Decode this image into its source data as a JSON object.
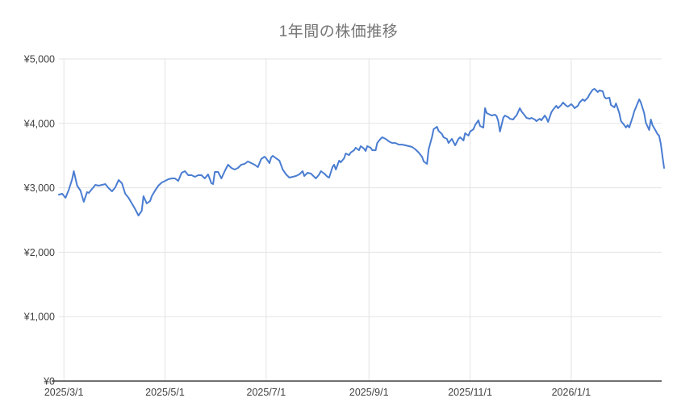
{
  "chart_data": {
    "type": "line",
    "title": "1年間の株価推移",
    "xlabel": "",
    "ylabel": "",
    "ylim": [
      0,
      5000
    ],
    "x_range_days": [
      0,
      365
    ],
    "grid": true,
    "legend": "none",
    "line_color": "#4a7dd1",
    "gridline_color": "#e3e3e3",
    "baseline_color": "#424242",
    "tick_label_color": "#404040",
    "title_color": "#757575",
    "y_axis": {
      "tick_values": [
        0,
        1000,
        2000,
        3000,
        4000,
        5000
      ],
      "tick_labels": [
        "¥0",
        "¥1,000",
        "¥2,000",
        "¥3,000",
        "¥4,000",
        "¥5,000"
      ]
    },
    "x_axis": {
      "tick_days": [
        3,
        64,
        125,
        187,
        248,
        309
      ],
      "tick_labels": [
        "2025/3/1",
        "2025/5/1",
        "2025/7/1",
        "2025/9/1",
        "2025/11/1",
        "2026/1/1"
      ]
    },
    "points": [
      [
        0,
        2894
      ],
      [
        2,
        2907
      ],
      [
        4,
        2845
      ],
      [
        6,
        2970
      ],
      [
        8,
        3133
      ],
      [
        9,
        3258
      ],
      [
        11,
        3032
      ],
      [
        13,
        2957
      ],
      [
        15,
        2782
      ],
      [
        17,
        2932
      ],
      [
        18,
        2920
      ],
      [
        20,
        2982
      ],
      [
        22,
        3045
      ],
      [
        24,
        3032
      ],
      [
        26,
        3045
      ],
      [
        28,
        3058
      ],
      [
        30,
        2995
      ],
      [
        32,
        2945
      ],
      [
        34,
        3007
      ],
      [
        36,
        3120
      ],
      [
        38,
        3070
      ],
      [
        40,
        2907
      ],
      [
        42,
        2845
      ],
      [
        44,
        2757
      ],
      [
        46,
        2669
      ],
      [
        48,
        2569
      ],
      [
        50,
        2644
      ],
      [
        51,
        2870
      ],
      [
        53,
        2757
      ],
      [
        55,
        2794
      ],
      [
        56,
        2870
      ],
      [
        58,
        2957
      ],
      [
        60,
        3032
      ],
      [
        62,
        3082
      ],
      [
        64,
        3107
      ],
      [
        66,
        3133
      ],
      [
        68,
        3145
      ],
      [
        70,
        3145
      ],
      [
        72,
        3107
      ],
      [
        74,
        3233
      ],
      [
        76,
        3258
      ],
      [
        78,
        3195
      ],
      [
        80,
        3195
      ],
      [
        82,
        3170
      ],
      [
        84,
        3195
      ],
      [
        86,
        3195
      ],
      [
        88,
        3145
      ],
      [
        90,
        3208
      ],
      [
        92,
        3070
      ],
      [
        93,
        3058
      ],
      [
        94,
        3245
      ],
      [
        96,
        3245
      ],
      [
        98,
        3145
      ],
      [
        100,
        3258
      ],
      [
        102,
        3358
      ],
      [
        104,
        3308
      ],
      [
        106,
        3283
      ],
      [
        108,
        3308
      ],
      [
        110,
        3358
      ],
      [
        112,
        3371
      ],
      [
        114,
        3408
      ],
      [
        116,
        3383
      ],
      [
        118,
        3358
      ],
      [
        120,
        3321
      ],
      [
        122,
        3446
      ],
      [
        124,
        3483
      ],
      [
        125,
        3458
      ],
      [
        127,
        3383
      ],
      [
        128,
        3471
      ],
      [
        129,
        3496
      ],
      [
        131,
        3458
      ],
      [
        133,
        3421
      ],
      [
        135,
        3283
      ],
      [
        137,
        3208
      ],
      [
        139,
        3158
      ],
      [
        141,
        3170
      ],
      [
        143,
        3183
      ],
      [
        145,
        3208
      ],
      [
        147,
        3258
      ],
      [
        148,
        3183
      ],
      [
        150,
        3233
      ],
      [
        152,
        3220
      ],
      [
        154,
        3170
      ],
      [
        155,
        3145
      ],
      [
        157,
        3208
      ],
      [
        158,
        3258
      ],
      [
        160,
        3220
      ],
      [
        162,
        3170
      ],
      [
        163,
        3158
      ],
      [
        165,
        3321
      ],
      [
        166,
        3358
      ],
      [
        167,
        3283
      ],
      [
        169,
        3421
      ],
      [
        170,
        3396
      ],
      [
        172,
        3458
      ],
      [
        173,
        3533
      ],
      [
        175,
        3508
      ],
      [
        176,
        3546
      ],
      [
        178,
        3583
      ],
      [
        179,
        3621
      ],
      [
        181,
        3583
      ],
      [
        182,
        3646
      ],
      [
        184,
        3608
      ],
      [
        185,
        3571
      ],
      [
        186,
        3646
      ],
      [
        188,
        3621
      ],
      [
        189,
        3583
      ],
      [
        191,
        3583
      ],
      [
        192,
        3696
      ],
      [
        194,
        3759
      ],
      [
        195,
        3784
      ],
      [
        197,
        3759
      ],
      [
        199,
        3721
      ],
      [
        201,
        3696
      ],
      [
        203,
        3696
      ],
      [
        205,
        3671
      ],
      [
        207,
        3671
      ],
      [
        209,
        3659
      ],
      [
        211,
        3646
      ],
      [
        213,
        3634
      ],
      [
        215,
        3596
      ],
      [
        217,
        3546
      ],
      [
        219,
        3483
      ],
      [
        220,
        3408
      ],
      [
        222,
        3371
      ],
      [
        223,
        3596
      ],
      [
        225,
        3784
      ],
      [
        226,
        3909
      ],
      [
        228,
        3947
      ],
      [
        229,
        3884
      ],
      [
        231,
        3834
      ],
      [
        232,
        3784
      ],
      [
        234,
        3759
      ],
      [
        235,
        3696
      ],
      [
        237,
        3759
      ],
      [
        238,
        3709
      ],
      [
        239,
        3659
      ],
      [
        241,
        3759
      ],
      [
        242,
        3784
      ],
      [
        244,
        3734
      ],
      [
        245,
        3847
      ],
      [
        247,
        3809
      ],
      [
        248,
        3872
      ],
      [
        250,
        3909
      ],
      [
        251,
        3972
      ],
      [
        253,
        4047
      ],
      [
        254,
        3960
      ],
      [
        256,
        3934
      ],
      [
        257,
        4235
      ],
      [
        258,
        4160
      ],
      [
        260,
        4135
      ],
      [
        261,
        4122
      ],
      [
        263,
        4135
      ],
      [
        264,
        4110
      ],
      [
        265,
        4035
      ],
      [
        266,
        3872
      ],
      [
        268,
        4085
      ],
      [
        269,
        4122
      ],
      [
        271,
        4097
      ],
      [
        272,
        4072
      ],
      [
        274,
        4060
      ],
      [
        275,
        4097
      ],
      [
        276,
        4122
      ],
      [
        278,
        4235
      ],
      [
        279,
        4185
      ],
      [
        281,
        4122
      ],
      [
        282,
        4085
      ],
      [
        284,
        4072
      ],
      [
        285,
        4085
      ],
      [
        287,
        4060
      ],
      [
        288,
        4035
      ],
      [
        290,
        4072
      ],
      [
        291,
        4047
      ],
      [
        293,
        4122
      ],
      [
        294,
        4085
      ],
      [
        295,
        4022
      ],
      [
        297,
        4172
      ],
      [
        298,
        4210
      ],
      [
        300,
        4273
      ],
      [
        301,
        4235
      ],
      [
        303,
        4285
      ],
      [
        304,
        4323
      ],
      [
        306,
        4273
      ],
      [
        307,
        4260
      ],
      [
        309,
        4298
      ],
      [
        310,
        4273
      ],
      [
        311,
        4235
      ],
      [
        313,
        4273
      ],
      [
        314,
        4323
      ],
      [
        316,
        4373
      ],
      [
        317,
        4348
      ],
      [
        319,
        4398
      ],
      [
        320,
        4448
      ],
      [
        322,
        4523
      ],
      [
        323,
        4536
      ],
      [
        325,
        4486
      ],
      [
        326,
        4511
      ],
      [
        328,
        4498
      ],
      [
        329,
        4411
      ],
      [
        330,
        4386
      ],
      [
        332,
        4398
      ],
      [
        333,
        4285
      ],
      [
        335,
        4248
      ],
      [
        336,
        4310
      ],
      [
        338,
        4160
      ],
      [
        339,
        4035
      ],
      [
        341,
        3972
      ],
      [
        342,
        3935
      ],
      [
        343,
        3972
      ],
      [
        344,
        3935
      ],
      [
        346,
        4097
      ],
      [
        347,
        4185
      ],
      [
        348,
        4248
      ],
      [
        350,
        4373
      ],
      [
        351,
        4323
      ],
      [
        353,
        4160
      ],
      [
        354,
        4010
      ],
      [
        356,
        3897
      ],
      [
        357,
        4060
      ],
      [
        358,
        3972
      ],
      [
        360,
        3884
      ],
      [
        361,
        3834
      ],
      [
        362,
        3809
      ],
      [
        363,
        3684
      ],
      [
        364,
        3496
      ],
      [
        365,
        3308
      ]
    ]
  }
}
